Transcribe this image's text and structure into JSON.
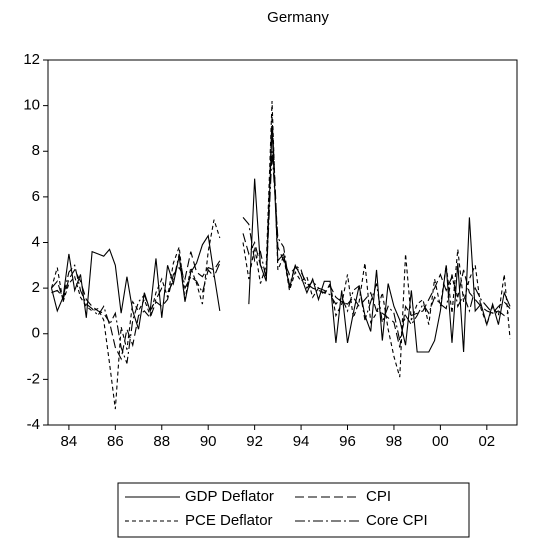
{
  "chart_data": {
    "type": "line",
    "title": "Germany",
    "x": [
      1983.25,
      1983.5,
      1983.75,
      1984,
      1984.25,
      1984.5,
      1984.75,
      1985,
      1985.25,
      1985.5,
      1985.75,
      1986,
      1986.25,
      1986.5,
      1986.75,
      1987,
      1987.25,
      1987.5,
      1987.75,
      1988,
      1988.25,
      1988.5,
      1988.75,
      1989,
      1989.25,
      1989.5,
      1989.75,
      1990,
      1990.25,
      1990.5,
      1990.75,
      1991,
      1991.25,
      1991.5,
      1991.75,
      1992,
      1992.25,
      1992.5,
      1992.75,
      1993,
      1993.25,
      1993.5,
      1993.75,
      1994,
      1994.25,
      1994.5,
      1994.75,
      1995,
      1995.25,
      1995.5,
      1995.75,
      1996,
      1996.25,
      1996.5,
      1996.75,
      1997,
      1997.25,
      1997.5,
      1997.75,
      1998,
      1998.25,
      1998.5,
      1998.75,
      1999,
      1999.25,
      1999.5,
      1999.75,
      2000,
      2000.25,
      2000.5,
      2000.75,
      2001,
      2001.25,
      2001.5,
      2001.75,
      2002,
      2002.25,
      2002.5,
      2002.75,
      2003
    ],
    "series": [
      {
        "name": "GDP Deflator",
        "color": "#000000",
        "line_style": "solid",
        "values": [
          2.0,
          1.0,
          1.6,
          3.5,
          1.9,
          2.6,
          0.7,
          3.6,
          3.5,
          3.4,
          3.7,
          3.0,
          0.9,
          2.5,
          1.0,
          0.2,
          1.8,
          1.0,
          3.3,
          0.7,
          3.0,
          2.2,
          3.4,
          1.4,
          2.7,
          3.1,
          3.9,
          4.3,
          2.6,
          1.0,
          null,
          null,
          null,
          null,
          1.3,
          6.8,
          3.0,
          2.3,
          9.0,
          3.2,
          3.5,
          2.0,
          3.0,
          2.5,
          1.8,
          2.4,
          1.5,
          2.3,
          2.3,
          -0.4,
          1.9,
          -0.4,
          0.9,
          2.1,
          0.8,
          0.1,
          2.8,
          -0.3,
          2.2,
          1.2,
          0.6,
          -0.5,
          1.9,
          -0.8,
          -0.8,
          -0.8,
          -0.3,
          1.0,
          3.0,
          -0.4,
          3.1,
          -0.8,
          5.1,
          1.0,
          1.3,
          0.4,
          1.3,
          0.4,
          1.8,
          1.2
        ]
      },
      {
        "name": "CPI",
        "color": "#000000",
        "line_style": "long-dash",
        "values": [
          2.0,
          2.3,
          1.5,
          2.4,
          2.8,
          2.3,
          1.5,
          1.2,
          1.0,
          0.9,
          0.5,
          -0.6,
          -1.1,
          0.2,
          -0.5,
          0.8,
          1.0,
          0.7,
          1.4,
          1.2,
          1.5,
          2.6,
          2.9,
          2.4,
          3.6,
          2.7,
          2.5,
          2.9,
          2.8,
          3.2,
          null,
          null,
          null,
          4.4,
          3.5,
          4.0,
          3.0,
          2.6,
          9.5,
          3.8,
          3.2,
          2.6,
          2.9,
          2.7,
          2.2,
          2.0,
          1.9,
          1.8,
          2.1,
          1.6,
          1.4,
          1.3,
          1.6,
          1.2,
          1.5,
          1.8,
          1.0,
          0.9,
          0.7,
          0.5,
          -0.6,
          1.2,
          0.8,
          0.9,
          1.0,
          1.5,
          2.0,
          2.6,
          1.9,
          2.5,
          1.6,
          2.8,
          1.8,
          1.5,
          1.2,
          1.0,
          0.9,
          1.2,
          1.4,
          1.1
        ]
      },
      {
        "name": "PCE Deflator",
        "color": "#000000",
        "line_style": "short-dash",
        "values": [
          2.0,
          2.9,
          1.4,
          2.2,
          2.5,
          1.6,
          1.2,
          1.0,
          1.1,
          0.6,
          -1.3,
          -3.3,
          0.3,
          -0.7,
          1.4,
          1.0,
          1.5,
          0.8,
          1.8,
          2.4,
          1.6,
          3.1,
          3.8,
          1.5,
          2.9,
          2.2,
          1.3,
          3.6,
          5.0,
          4.2,
          null,
          null,
          null,
          4.0,
          2.4,
          3.8,
          2.2,
          3.0,
          10.2,
          2.8,
          3.4,
          1.9,
          2.7,
          2.3,
          2.5,
          1.6,
          2.0,
          1.7,
          2.2,
          0.8,
          1.3,
          2.6,
          0.7,
          1.4,
          3.1,
          0.5,
          0.9,
          1.8,
          0.2,
          -1.0,
          -1.9,
          3.5,
          0.6,
          1.3,
          1.5,
          0.4,
          2.4,
          1.2,
          3.0,
          0.9,
          3.7,
          1.4,
          2.4,
          3.0,
          1.1,
          0.4,
          1.2,
          0.8,
          2.6,
          -0.2
        ]
      },
      {
        "name": "Core CPI",
        "color": "#000000",
        "line_style": "dash-dot",
        "values": [
          1.8,
          1.9,
          1.6,
          2.7,
          3.0,
          1.9,
          1.3,
          1.1,
          0.8,
          1.2,
          0.4,
          0.9,
          -0.6,
          -1.3,
          0.6,
          1.4,
          1.7,
          1.0,
          1.5,
          2.0,
          1.8,
          2.3,
          3.5,
          2.0,
          2.5,
          2.3,
          1.8,
          2.8,
          2.5,
          3.1,
          null,
          null,
          null,
          5.1,
          4.8,
          3.2,
          3.6,
          2.4,
          8.0,
          4.2,
          3.8,
          2.1,
          3.0,
          2.8,
          2.0,
          2.3,
          2.0,
          1.9,
          1.7,
          1.3,
          1.6,
          1.0,
          1.9,
          2.1,
          0.6,
          1.4,
          2.2,
          0.5,
          1.2,
          0.9,
          -0.3,
          0.8,
          0.4,
          0.8,
          1.3,
          0.9,
          1.6,
          1.3,
          1.1,
          2.6,
          1.2,
          1.7,
          1.0,
          2.0,
          1.5,
          1.2,
          0.9,
          1.0,
          0.8,
          1.0
        ]
      }
    ],
    "xlim": [
      1983.1,
      2003.3
    ],
    "xticks": [
      {
        "value": 1984,
        "label": "84"
      },
      {
        "value": 1986,
        "label": "86"
      },
      {
        "value": 1988,
        "label": "88"
      },
      {
        "value": 1990,
        "label": "90"
      },
      {
        "value": 1992,
        "label": "92"
      },
      {
        "value": 1994,
        "label": "94"
      },
      {
        "value": 1996,
        "label": "96"
      },
      {
        "value": 1998,
        "label": "98"
      },
      {
        "value": 2000,
        "label": "00"
      },
      {
        "value": 2002,
        "label": "02"
      }
    ],
    "ylim": [
      -4,
      12
    ],
    "yticks": [
      -4,
      -2,
      0,
      2,
      4,
      6,
      8,
      10,
      12
    ],
    "grid": false,
    "legend": "bottom"
  }
}
